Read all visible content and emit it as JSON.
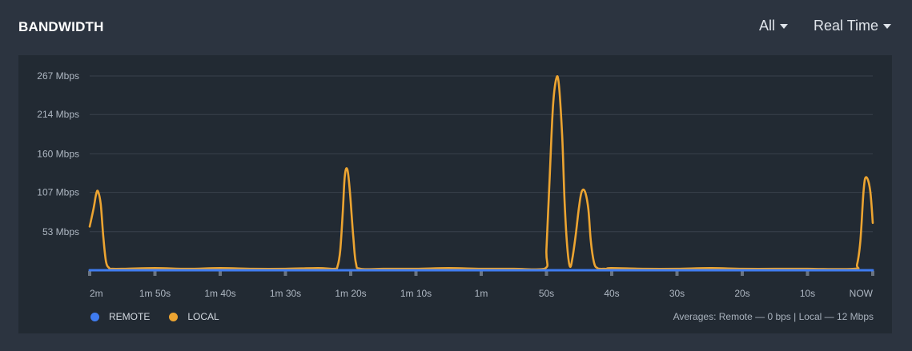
{
  "header": {
    "title": "BANDWIDTH",
    "filter_label": "All",
    "range_label": "Real Time"
  },
  "legend": {
    "remote_label": "REMOTE",
    "local_label": "LOCAL"
  },
  "averages": {
    "prefix": "Averages:",
    "remote_label": "Remote",
    "remote_value": "0 bps",
    "local_label": "Local",
    "local_value": "12 Mbps"
  },
  "colors": {
    "remote": "#3f7cf0",
    "local": "#eca431",
    "grid": "#39414c",
    "axis_text": "#aeb7c2",
    "background": "#2c3440",
    "plot_background": "#222a33"
  },
  "chart_data": {
    "type": "line",
    "title": "BANDWIDTH",
    "xlabel": "",
    "ylabel": "",
    "y_unit": "Mbps",
    "ylim": [
      0,
      267
    ],
    "xlim": [
      120,
      0
    ],
    "yticks": [
      53,
      107,
      160,
      214,
      267
    ],
    "ytick_labels": [
      "53 Mbps",
      "107 Mbps",
      "160 Mbps",
      "214 Mbps",
      "267 Mbps"
    ],
    "xticks": [
      120,
      110,
      100,
      90,
      80,
      70,
      60,
      50,
      40,
      30,
      20,
      10,
      0
    ],
    "xtick_labels": [
      "2m",
      "1m 50s",
      "1m 40s",
      "1m 30s",
      "1m 20s",
      "1m 10s",
      "1m",
      "50s",
      "40s",
      "30s",
      "20s",
      "10s",
      "NOW"
    ],
    "grid": true,
    "legend_position": "bottom-left",
    "series": [
      {
        "name": "REMOTE",
        "color": "#3f7cf0",
        "x": [
          120,
          0
        ],
        "y": [
          0,
          0
        ]
      },
      {
        "name": "LOCAL",
        "color": "#eca431",
        "x": [
          120,
          119.4,
          119.0,
          118.7,
          118.3,
          117.9,
          117.5,
          117.0,
          116.5,
          115,
          110,
          105,
          100,
          95,
          90,
          85,
          82.5,
          82,
          81.6,
          81.2,
          80.9,
          80.5,
          80.1,
          79.6,
          79.2,
          78.5,
          75,
          70,
          65,
          60,
          55,
          50.3,
          50,
          49.5,
          49.0,
          48.5,
          48.1,
          47.6,
          47.2,
          46.8,
          46.4,
          46.0,
          45.5,
          45.0,
          44.6,
          44.1,
          43.6,
          43.2,
          42.7,
          42.2,
          41.7,
          41.2,
          40.8,
          40,
          35,
          30,
          25,
          20,
          15,
          10,
          2.9,
          2.4,
          1.9,
          1.4,
          1.0,
          0.4,
          0
        ],
        "y": [
          60,
          85,
          105,
          108,
          90,
          45,
          12,
          3,
          2,
          2,
          3,
          2,
          3,
          2,
          2,
          3,
          2,
          6,
          28,
          82,
          130,
          138,
          105,
          45,
          10,
          2,
          2,
          2,
          3,
          2,
          2,
          2,
          30,
          130,
          225,
          263,
          255,
          185,
          90,
          30,
          5,
          18,
          50,
          88,
          108,
          108,
          85,
          40,
          10,
          3,
          2,
          2,
          2,
          3,
          2,
          2,
          3,
          2,
          2,
          2,
          2,
          8,
          40,
          110,
          128,
          110,
          65
        ]
      }
    ]
  }
}
